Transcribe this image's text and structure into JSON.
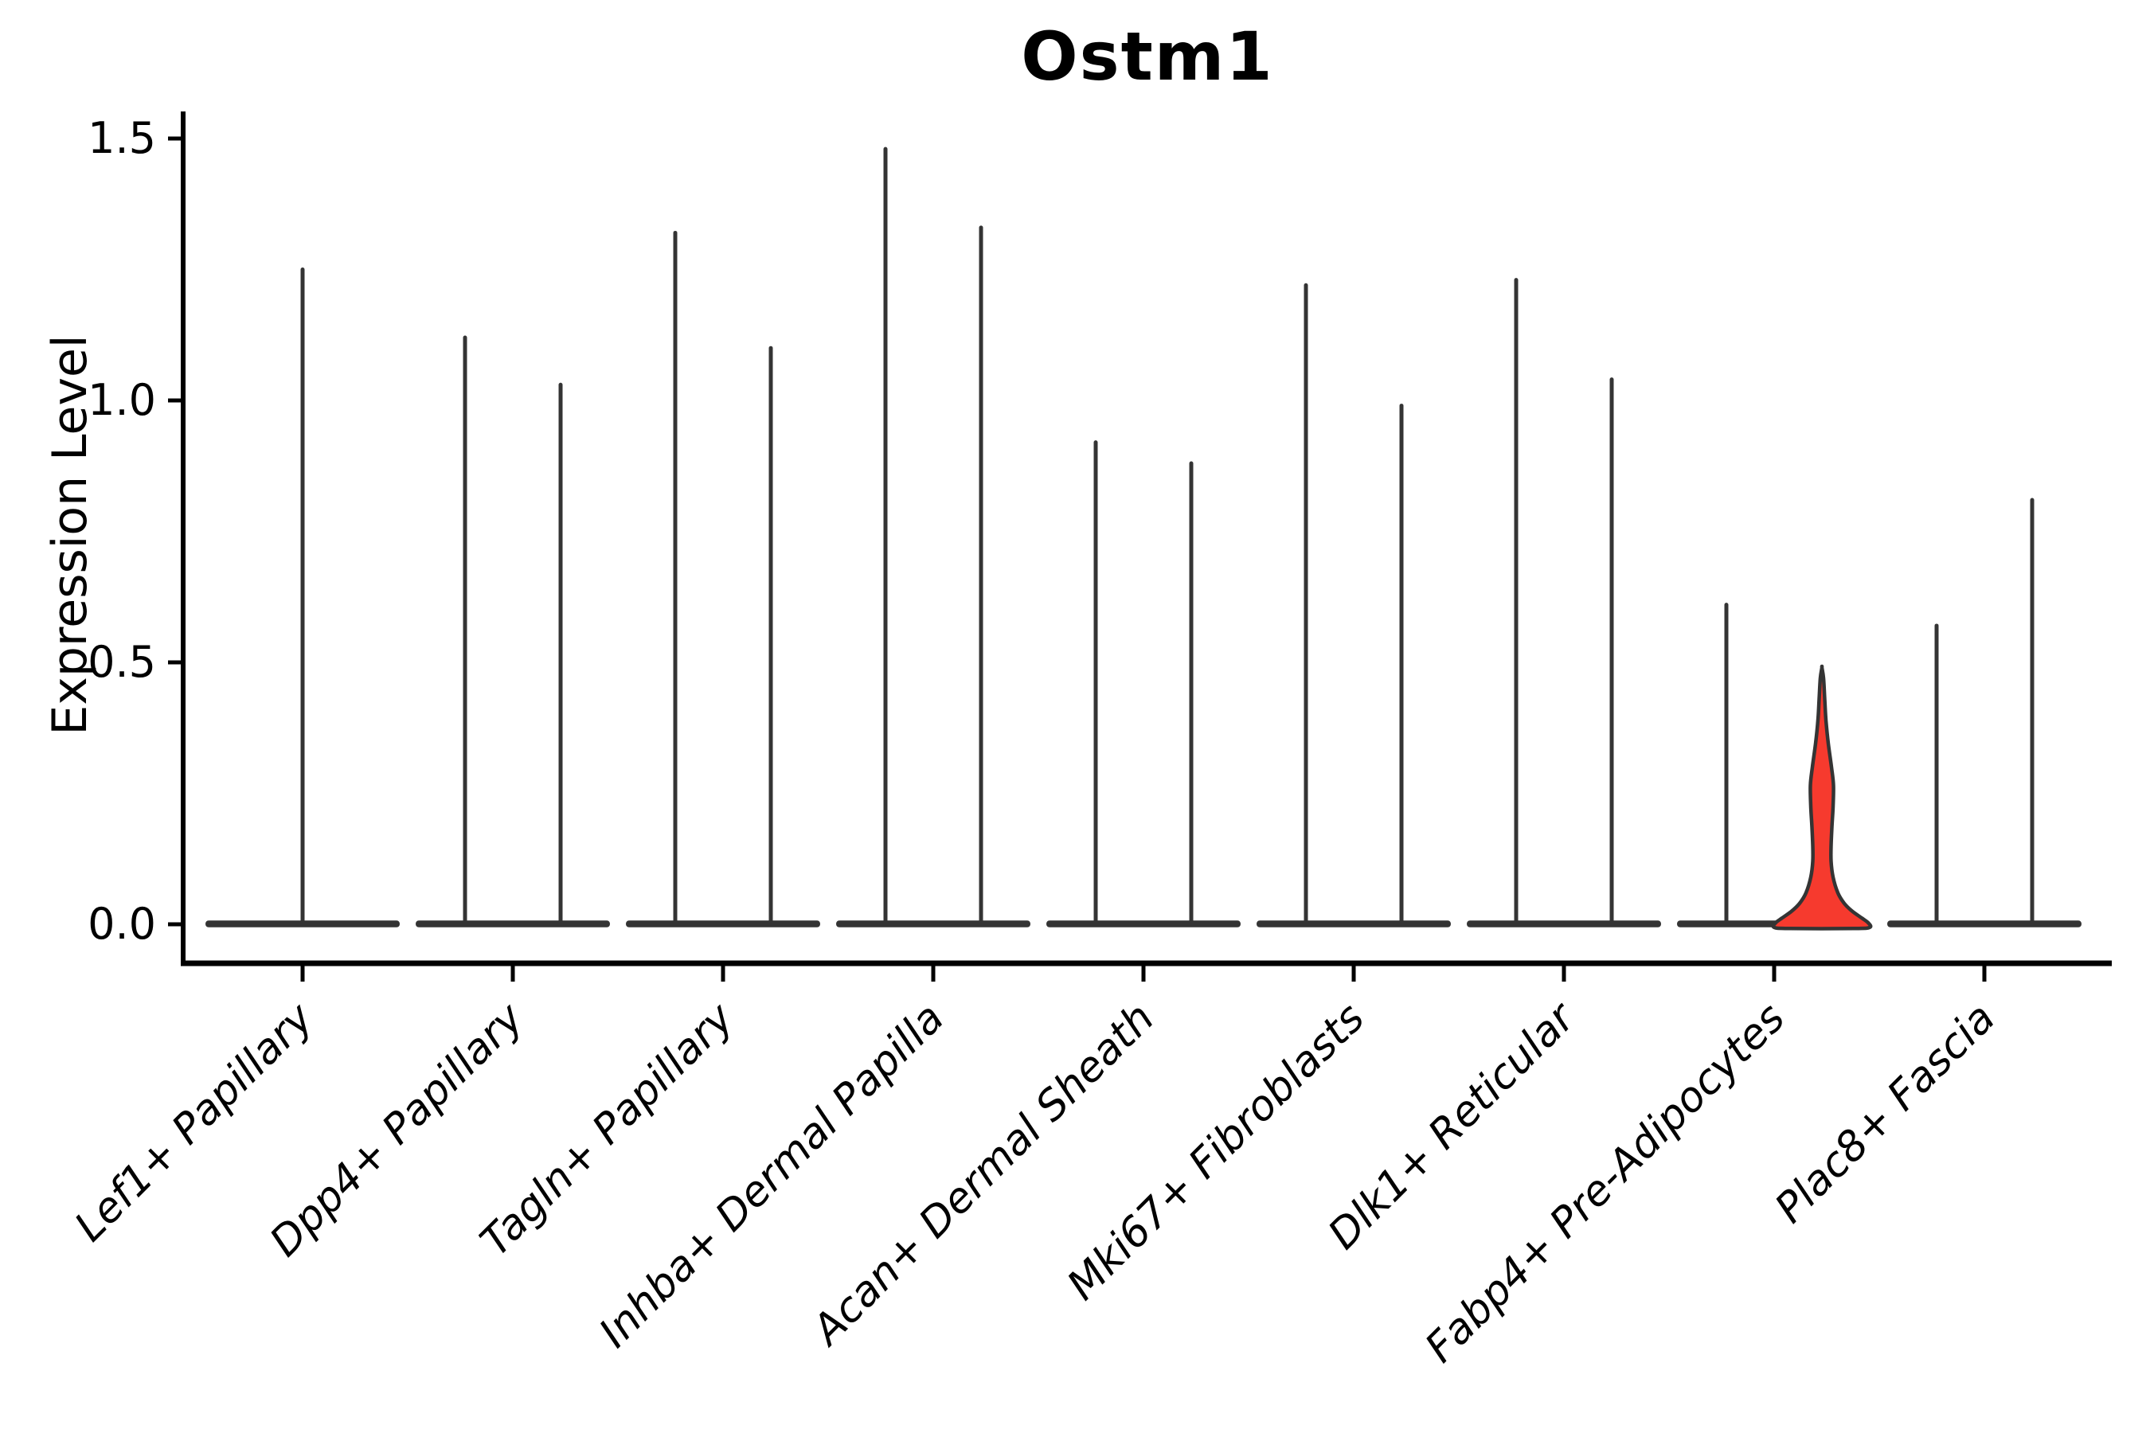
{
  "chart_data": {
    "type": "violin",
    "title": "Ostm1",
    "ylabel": "Expression Level",
    "xlabel": "",
    "grid": false,
    "legend": null,
    "ylim": [
      -0.074,
      1.55
    ],
    "yticks": {
      "values": [
        0.0,
        0.5,
        1.0,
        1.5
      ],
      "labels": [
        "0.0",
        "0.5",
        "1.0",
        "1.5"
      ]
    },
    "categories": [
      "Lef1+ Papillary",
      "Dpp4+ Papillary",
      "Tagln+ Papillary",
      "Inhba+ Dermal Papilla",
      "Acan+ Dermal Sheath",
      "Mki67+ Fibroblasts",
      "Dlk1+ Reticular",
      "Fabp4+ Pre-Adipocytes",
      "Plac8+ Fascia"
    ],
    "groups": [
      {
        "label": "Lef1+ Papillary",
        "violins": [
          {
            "offset": 0,
            "max": 1.25
          }
        ]
      },
      {
        "label": "Dpp4+ Papillary",
        "violins": [
          {
            "offset": -60,
            "max": 1.12
          },
          {
            "offset": 60,
            "max": 1.03
          }
        ]
      },
      {
        "label": "Tagln+ Papillary",
        "violins": [
          {
            "offset": -60,
            "max": 1.32
          },
          {
            "offset": 60,
            "max": 1.1
          }
        ]
      },
      {
        "label": "Inhba+ Dermal Papilla",
        "violins": [
          {
            "offset": -60,
            "max": 1.48
          },
          {
            "offset": 60,
            "max": 1.33
          }
        ]
      },
      {
        "label": "Acan+ Dermal Sheath",
        "violins": [
          {
            "offset": -60,
            "max": 0.92
          },
          {
            "offset": 60,
            "max": 0.88
          }
        ]
      },
      {
        "label": "Mki67+ Fibroblasts",
        "violins": [
          {
            "offset": -60,
            "max": 1.22
          },
          {
            "offset": 60,
            "max": 0.99
          }
        ]
      },
      {
        "label": "Dlk1+ Reticular",
        "violins": [
          {
            "offset": -60,
            "max": 1.23
          },
          {
            "offset": 60,
            "max": 1.04
          }
        ]
      },
      {
        "label": "Fabp4+ Pre-Adipocytes",
        "violins": [
          {
            "offset": -60,
            "max": 0.61
          },
          {
            "offset": 60,
            "max": 0.49,
            "highlight": true
          }
        ]
      },
      {
        "label": "Plac8+ Fascia",
        "violins": [
          {
            "offset": -60,
            "max": 0.57
          },
          {
            "offset": 60,
            "max": 0.81
          }
        ]
      }
    ],
    "highlight_violin": {
      "group": "Fabp4+ Pre-Adipocytes",
      "max": 0.49,
      "profile": [
        [
          0.49,
          0
        ],
        [
          0.47,
          2
        ],
        [
          0.43,
          3.5
        ],
        [
          0.39,
          5
        ],
        [
          0.345,
          8
        ],
        [
          0.3,
          12
        ],
        [
          0.265,
          14.5
        ],
        [
          0.225,
          14
        ],
        [
          0.185,
          12.5
        ],
        [
          0.15,
          11.5
        ],
        [
          0.12,
          11.5
        ],
        [
          0.09,
          14
        ],
        [
          0.06,
          20
        ],
        [
          0.04,
          28
        ],
        [
          0.025,
          38
        ],
        [
          0.012,
          50
        ],
        [
          0.003,
          58
        ],
        [
          -0.006,
          60
        ]
      ]
    },
    "colors": {
      "violin_stroke": "#343434",
      "axis": "#000000",
      "text": "#000000",
      "highlight_fill": "#f63a2e",
      "background": "#ffffff"
    }
  }
}
